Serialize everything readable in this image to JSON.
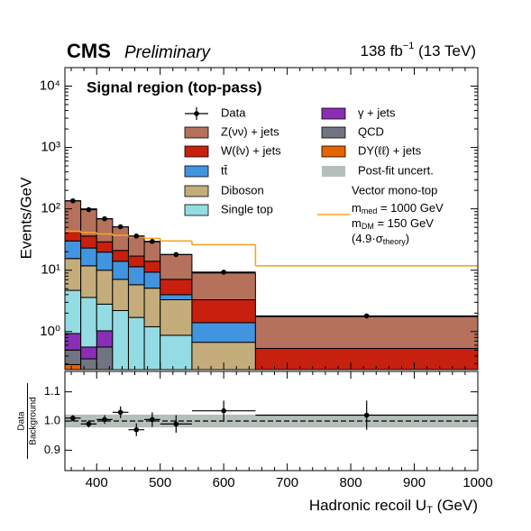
{
  "header": {
    "experiment": "CMS",
    "status": "Preliminary",
    "lumi": "138 fb",
    "lumi_exp": "−1",
    "energy": " (13 TeV)"
  },
  "chart_data": [
    {
      "type": "histogram",
      "title": "Signal region (top-pass)",
      "ylabel": "Events/GeV",
      "log_scale": true,
      "bins": [
        350,
        375,
        400,
        425,
        450,
        475,
        500,
        550,
        650,
        1000
      ],
      "ylim": [
        0.24,
        20000
      ],
      "yticks": [
        {
          "value": 1,
          "label": "10⁰"
        },
        {
          "value": 10,
          "label": "10¹"
        },
        {
          "value": 100,
          "label": "10²"
        },
        {
          "value": 1000,
          "label": "10³"
        },
        {
          "value": 10000,
          "label": "10⁴"
        }
      ],
      "series": [
        {
          "name": "DY(ℓℓ) + jets",
          "color": "#e76300",
          "values": [
            0.29,
            0.05,
            0.05,
            0.02,
            0.02,
            0.02,
            0.01,
            0.005,
            0.002
          ]
        },
        {
          "name": "QCD",
          "color": "#717581",
          "values": [
            0.21,
            0.31,
            0.51,
            0.1,
            0.08,
            0.06,
            0.04,
            0.02,
            0.005
          ]
        },
        {
          "name": "γ + jets",
          "color": "#8a2fb5",
          "values": [
            0.43,
            0.2,
            0.47,
            0.1,
            0.08,
            0.06,
            0.05,
            0.02,
            0.005
          ]
        },
        {
          "name": "Single top",
          "color": "#94dce3",
          "values": [
            3.77,
            3.04,
            1.77,
            1.98,
            1.52,
            1.06,
            0.77,
            0.105,
            0.02
          ]
        },
        {
          "name": "Diboson",
          "color": "#c4ad7b",
          "values": [
            10.8,
            8.2,
            7.2,
            4.9,
            4.1,
            3.9,
            2.43,
            0.52,
            0.06
          ]
        },
        {
          "name": "tt̄",
          "color": "#4194e0",
          "values": [
            14.5,
            11.2,
            9.7,
            6.9,
            5.6,
            4.2,
            0.7,
            0.73,
            0.1
          ]
        },
        {
          "name": "W(ℓν) + jets",
          "color": "#c8200e",
          "values": [
            13,
            13,
            9.3,
            7,
            5.6,
            4.7,
            3.1,
            1.9,
            0.34
          ]
        },
        {
          "name": "Z(νν) + jets",
          "color": "#b5715c",
          "values": [
            92,
            64,
            40,
            30,
            19,
            15,
            10.9,
            5.7,
            1.22
          ]
        }
      ],
      "data": {
        "name": "Data",
        "color": "#000000",
        "values": [
          135,
          97,
          69,
          51,
          36,
          29.5,
          18,
          9.3,
          1.8
        ]
      },
      "uncert": {
        "name": "Post-fit uncert.",
        "color": "#b4bfb9"
      },
      "signal": {
        "name": "Vector mono-top",
        "color": "#f5a623",
        "lines": [
          {
            "text": "m",
            "sub": "med",
            "rest": " = 1000 GeV"
          },
          {
            "text": "m",
            "sub": "DM",
            "rest": " = 150 GeV"
          },
          {
            "text": "(4.9·σ",
            "sub": "theory",
            "rest": ")"
          }
        ],
        "values": [
          43,
          41,
          39,
          37,
          35,
          33,
          30,
          26,
          11.8
        ]
      }
    },
    {
      "type": "errorbar",
      "ylabel": [
        "Data",
        "Background"
      ],
      "xlabel": {
        "text": "Hadronic recoil U",
        "sub": "T",
        "rest": " (GeV)"
      },
      "xlim": [
        350,
        1000
      ],
      "xticks": [
        400,
        500,
        600,
        700,
        800,
        900,
        1000
      ],
      "ylim": [
        0.83,
        1.17
      ],
      "yticks": [
        0.9,
        {
          "value": 1,
          "label": "1.0"
        },
        1.1
      ],
      "values": [
        1.01,
        0.99,
        1.005,
        1.03,
        0.97,
        1.005,
        0.99,
        1.035,
        1.02
      ],
      "errors": [
        0.01,
        0.012,
        0.015,
        0.02,
        0.022,
        0.025,
        0.03,
        0.035,
        0.05
      ],
      "band": [
        0.022,
        0.022,
        0.022,
        0.022,
        0.022,
        0.022,
        0.022,
        0.022,
        0.022
      ]
    }
  ]
}
